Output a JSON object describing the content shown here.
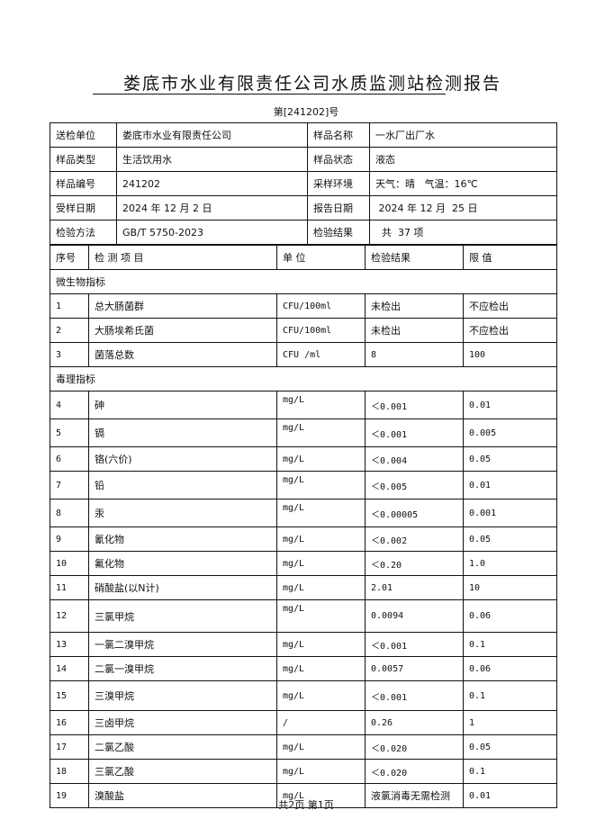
{
  "title": "娄底市水业有限责任公司水质监测站检测报告",
  "report_no": "第[241202]号",
  "info": [
    {
      "label1": "送检单位",
      "value1": "娄底市水业有限责任公司",
      "label2": "样品名称",
      "value2": "一水厂出厂水"
    },
    {
      "label1": "样品类型",
      "value1": "生活饮用水",
      "label2": "样品状态",
      "value2": "液态"
    },
    {
      "label1": "样品编号",
      "value1": "241202",
      "label2": "采样环境",
      "value2": "天气：晴   气温：16℃"
    },
    {
      "label1": "受样日期",
      "value1": "2024 年 12 月 2 日",
      "label2": "报告日期",
      "value2": " 2024 年 12 月  25 日"
    },
    {
      "label1": "检验方法",
      "value1": "GB/T 5750-2023",
      "label2": "检验结果",
      "value2": "  共  37 项"
    }
  ],
  "columns": [
    "序号",
    "检 测 项 目",
    "单  位",
    "检验结果",
    "限  值"
  ],
  "sections": [
    {
      "name": "微生物指标",
      "rows": [
        [
          "1",
          "总大肠菌群",
          "CFU/100ml",
          "未检出",
          "不应检出"
        ],
        [
          "2",
          "大肠埃希氏菌",
          "CFU/100ml",
          "未检出",
          "不应检出"
        ],
        [
          "3",
          "菌落总数",
          "CFU /ml",
          "8",
          "100"
        ]
      ]
    },
    {
      "name": "毒理指标",
      "rows": [
        [
          "4",
          "砷",
          "mg/L",
          "＜0.001",
          "0.01"
        ],
        [
          "5",
          "镉",
          "mg/L",
          "＜0.001",
          "0.005"
        ],
        [
          "6",
          "铬(六价)",
          "mg/L",
          "＜0.004",
          "0.05"
        ],
        [
          "7",
          "铅",
          "mg/L",
          "＜0.005",
          "0.01"
        ],
        [
          "8",
          "汞",
          "mg/L",
          "＜0.00005",
          "0.001"
        ],
        [
          "9",
          "氰化物",
          "mg/L",
          "＜0.002",
          "0.05"
        ],
        [
          "10",
          "氟化物",
          "mg/L",
          "＜0.20",
          "1.0"
        ],
        [
          "11",
          "硝酸盐(以N计)",
          "mg/L",
          "2.01",
          "10"
        ],
        [
          "12",
          "三氯甲烷",
          "mg/L",
          "0.0094",
          "0.06"
        ],
        [
          "13",
          "一氯二溴甲烷",
          "mg/L",
          "＜0.001",
          "0.1"
        ],
        [
          "14",
          "二氯一溴甲烷",
          "mg/L",
          "0.0057",
          "0.06"
        ],
        [
          "15",
          "三溴甲烷",
          "mg/L",
          "＜0.001",
          "0.1"
        ],
        [
          "16",
          "三卤甲烷",
          "/",
          "0.26",
          "1"
        ],
        [
          "17",
          "二氯乙酸",
          "mg/L",
          "＜0.020",
          "0.05"
        ],
        [
          "18",
          "三氯乙酸",
          "mg/L",
          "＜0.020",
          "0.1"
        ],
        [
          "19",
          "溴酸盐",
          "mg/L",
          "液氯消毒无需检测",
          "0.01"
        ]
      ]
    }
  ],
  "footer": "共2页  第1页"
}
